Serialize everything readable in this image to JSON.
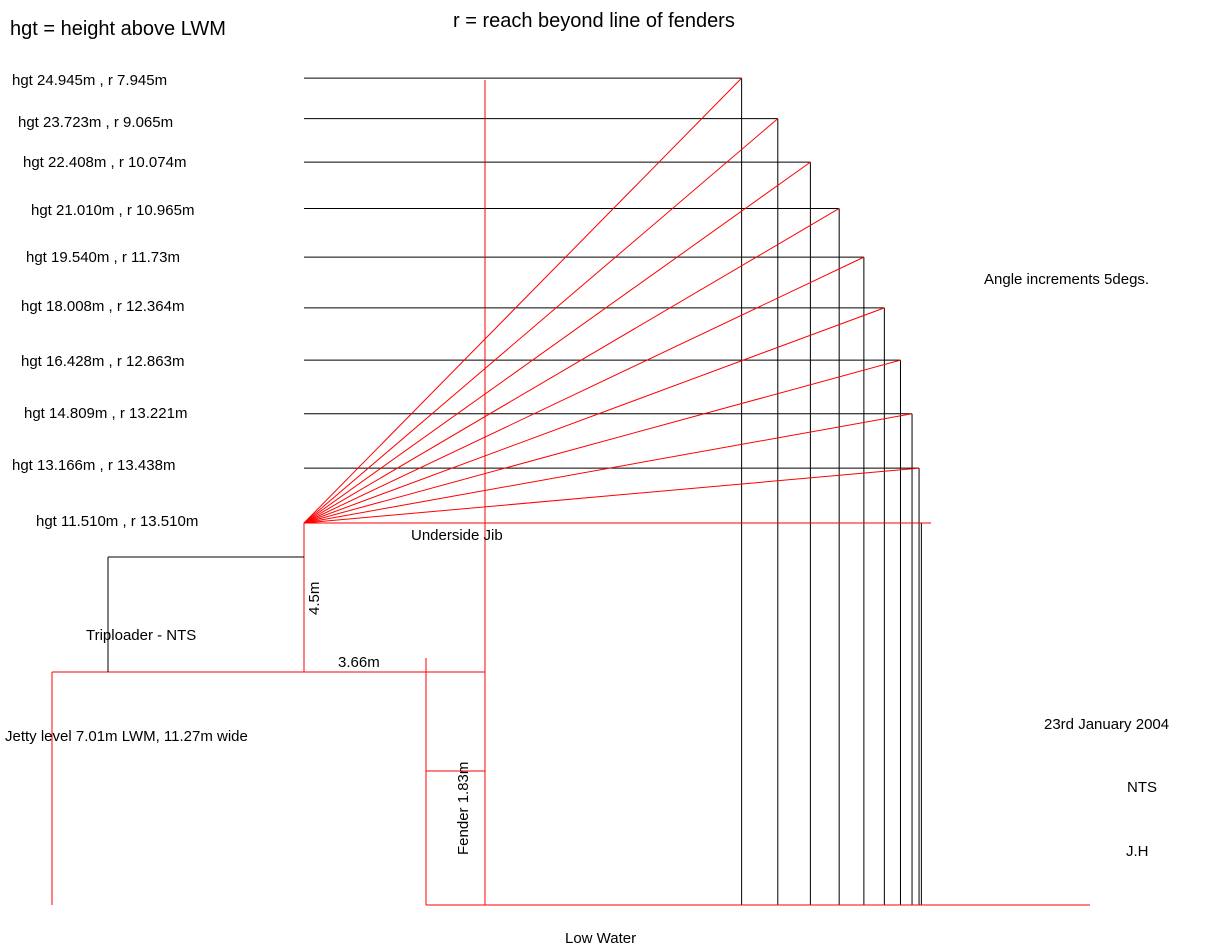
{
  "header": {
    "hgt_legend": "hgt = height above LWM",
    "reach_legend": "r = reach beyond line of fenders"
  },
  "positions": [
    {
      "label": "hgt 24.945m , r 7.945m",
      "height_m": 24.945,
      "reach_m": 7.945
    },
    {
      "label": "hgt 23.723m , r 9.065m",
      "height_m": 23.723,
      "reach_m": 9.065
    },
    {
      "label": "hgt 22.408m , r 10.074m",
      "height_m": 22.408,
      "reach_m": 10.074
    },
    {
      "label": "hgt 21.010m , r 10.965m",
      "height_m": 21.01,
      "reach_m": 10.965
    },
    {
      "label": "hgt 19.540m , r 11.73m",
      "height_m": 19.54,
      "reach_m": 11.73
    },
    {
      "label": "hgt 18.008m , r 12.364m",
      "height_m": 18.008,
      "reach_m": 12.364
    },
    {
      "label": "hgt 16.428m , r 12.863m",
      "height_m": 16.428,
      "reach_m": 12.863
    },
    {
      "label": "hgt 14.809m , r 13.221m",
      "height_m": 14.809,
      "reach_m": 13.221
    },
    {
      "label": "hgt 13.166m , r 13.438m",
      "height_m": 13.166,
      "reach_m": 13.438
    },
    {
      "label": "hgt 11.510m , r 13.510m",
      "height_m": 11.51,
      "reach_m": 13.51
    }
  ],
  "annotations": {
    "angle_increments": "Angle increments 5degs.",
    "underside_jib": "Underside Jib",
    "dim_4_5": "4.5m",
    "triploader": "Triploader - NTS",
    "dim_3_66": "3.66m",
    "jetty_level": "Jetty level 7.01m LWM, 11.27m wide",
    "fender": "Fender 1.83m",
    "low_water": "Low Water"
  },
  "title_block": {
    "date": "23rd January 2004",
    "scale": "NTS",
    "author": "J.H"
  },
  "colors": {
    "outline": "#ff0000",
    "level_lines": "#000000"
  }
}
